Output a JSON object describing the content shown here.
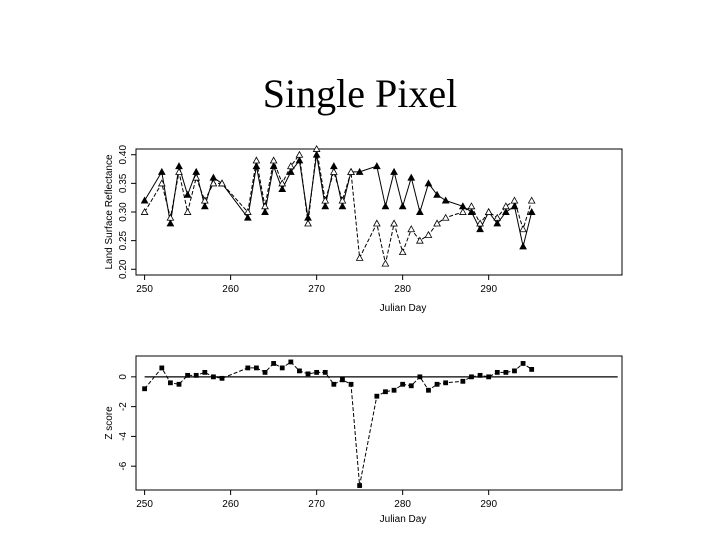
{
  "slide": {
    "title": "Single Pixel"
  },
  "chart_data": [
    {
      "type": "line",
      "xlabel": "Julian Day",
      "ylabel": "Land Surface Reflectance",
      "xlim": [
        249,
        305.5
      ],
      "ylim": [
        0.19,
        0.41
      ],
      "xticks": [
        250,
        260,
        270,
        280,
        290
      ],
      "xtick_labels": [
        "250",
        "260",
        "270",
        "280",
        "290"
      ],
      "yticks": [
        0.2,
        0.25,
        0.3,
        0.35,
        0.4
      ],
      "ytick_labels": [
        "0.20",
        "0.25",
        "0.30",
        "0.35",
        "0.40"
      ],
      "grid": false,
      "legend": "none",
      "series": [
        {
          "marker": "filled-triangle",
          "line": "solid",
          "x": [
            250,
            252,
            253,
            254,
            255,
            256,
            257,
            258,
            259,
            262,
            263,
            264,
            265,
            266,
            267,
            268,
            269,
            270,
            271,
            272,
            273,
            274,
            275,
            277,
            278,
            279,
            280,
            281,
            282,
            283,
            284,
            285,
            287,
            288,
            289,
            290,
            291,
            292,
            293,
            294,
            295
          ],
          "y": [
            0.32,
            0.37,
            0.28,
            0.38,
            0.33,
            0.37,
            0.31,
            0.36,
            0.35,
            0.29,
            0.38,
            0.3,
            0.38,
            0.34,
            0.37,
            0.39,
            0.29,
            0.4,
            0.31,
            0.38,
            0.31,
            0.37,
            0.37,
            0.38,
            0.31,
            0.37,
            0.31,
            0.36,
            0.3,
            0.35,
            0.33,
            0.32,
            0.31,
            0.3,
            0.27,
            0.3,
            0.28,
            0.3,
            0.31,
            0.24,
            0.3
          ]
        },
        {
          "marker": "open-triangle",
          "line": "dashed",
          "x": [
            250,
            252,
            253,
            254,
            255,
            256,
            257,
            258,
            259,
            262,
            263,
            264,
            265,
            266,
            267,
            268,
            269,
            270,
            271,
            272,
            273,
            274,
            275,
            277,
            278,
            279,
            280,
            281,
            282,
            283,
            284,
            285,
            287,
            288,
            289,
            290,
            291,
            292,
            293,
            294,
            295
          ],
          "y": [
            0.3,
            0.35,
            0.29,
            0.37,
            0.3,
            0.36,
            0.32,
            0.35,
            0.35,
            0.3,
            0.39,
            0.31,
            0.39,
            0.35,
            0.38,
            0.4,
            0.28,
            0.41,
            0.32,
            0.37,
            0.32,
            0.37,
            0.22,
            0.28,
            0.21,
            0.28,
            0.23,
            0.27,
            0.25,
            0.26,
            0.28,
            0.29,
            0.3,
            0.31,
            0.28,
            0.3,
            0.29,
            0.31,
            0.32,
            0.27,
            0.32
          ]
        }
      ]
    },
    {
      "type": "line",
      "xlabel": "Julian Day",
      "ylabel": "Z score",
      "xlim": [
        249,
        305.5
      ],
      "ylim": [
        -7.6,
        1.4
      ],
      "xticks": [
        250,
        260,
        270,
        280,
        290
      ],
      "xtick_labels": [
        "250",
        "260",
        "270",
        "280",
        "290"
      ],
      "yticks": [
        -6,
        -4,
        -2,
        0
      ],
      "ytick_labels": [
        "-6",
        "-4",
        "-2",
        "0"
      ],
      "hline": 0,
      "grid": false,
      "legend": "none",
      "series": [
        {
          "marker": "filled-square",
          "line": "dashed",
          "x": [
            250,
            252,
            253,
            254,
            255,
            256,
            257,
            258,
            259,
            262,
            263,
            264,
            265,
            266,
            267,
            268,
            269,
            270,
            271,
            272,
            273,
            274,
            275,
            277,
            278,
            279,
            280,
            281,
            282,
            283,
            284,
            285,
            287,
            288,
            289,
            290,
            291,
            292,
            293,
            294,
            295
          ],
          "y": [
            -0.8,
            0.6,
            -0.4,
            -0.5,
            0.1,
            0.1,
            0.3,
            0.0,
            -0.1,
            0.6,
            0.6,
            0.3,
            0.9,
            0.6,
            1.0,
            0.4,
            0.2,
            0.3,
            0.3,
            -0.5,
            -0.2,
            -0.5,
            -7.3,
            -1.3,
            -1.0,
            -0.9,
            -0.5,
            -0.6,
            0.0,
            -0.9,
            -0.5,
            -0.4,
            -0.3,
            0.0,
            0.1,
            0.0,
            0.3,
            0.3,
            0.4,
            0.9,
            0.5
          ]
        }
      ]
    }
  ]
}
